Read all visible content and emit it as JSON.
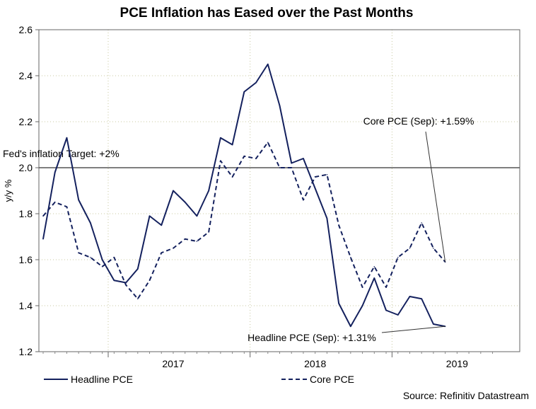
{
  "chart_data": {
    "type": "line",
    "title": "PCE Inflation has Eased over the Past Months",
    "ylabel": "y/y %",
    "xlabel": "",
    "ylim": [
      1.2,
      2.6
    ],
    "yticks": [
      1.2,
      1.4,
      1.6,
      1.8,
      2.0,
      2.2,
      2.4,
      2.6
    ],
    "ytick_labels": [
      "1.2",
      "1.4",
      "1.6",
      "1.8",
      "2.0",
      "2.2",
      "2.4",
      "2.6"
    ],
    "x_start": "2016-07",
    "x_end": "2019-09",
    "x_range_months": [
      0,
      40
    ],
    "year_labels": [
      {
        "label": "2017",
        "month_index": 11
      },
      {
        "label": "2018",
        "month_index": 23
      },
      {
        "label": "2019",
        "month_index": 35
      }
    ],
    "grid": true,
    "legend_position": "bottom",
    "series": [
      {
        "name": "Headline PCE",
        "style": "solid",
        "color": "#14215e",
        "values": [
          1.69,
          1.98,
          2.13,
          1.86,
          1.76,
          1.6,
          1.51,
          1.5,
          1.56,
          1.79,
          1.75,
          1.9,
          1.85,
          1.79,
          1.9,
          2.13,
          2.1,
          2.33,
          2.37,
          2.45,
          2.27,
          2.02,
          2.04,
          1.91,
          1.78,
          1.41,
          1.31,
          1.4,
          1.52,
          1.38,
          1.36,
          1.44,
          1.43,
          1.32,
          1.31
        ]
      },
      {
        "name": "Core PCE",
        "style": "dashed",
        "color": "#14215e",
        "values": [
          1.79,
          1.85,
          1.83,
          1.63,
          1.61,
          1.57,
          1.61,
          1.49,
          1.43,
          1.51,
          1.63,
          1.65,
          1.69,
          1.68,
          1.72,
          2.03,
          1.96,
          2.05,
          2.04,
          2.11,
          2.0,
          2.0,
          1.86,
          1.96,
          1.97,
          1.75,
          1.61,
          1.48,
          1.57,
          1.48,
          1.61,
          1.65,
          1.76,
          1.65,
          1.59
        ]
      }
    ],
    "reference_line": {
      "value": 2.0,
      "label": "Fed's inflation Target: +2%"
    },
    "annotations": [
      {
        "text": "Core PCE (Sep): +1.59%",
        "series": "Core PCE"
      },
      {
        "text": "Headline PCE (Sep): +1.31%",
        "series": "Headline PCE"
      }
    ],
    "source": "Source: Refinitiv Datastream"
  }
}
